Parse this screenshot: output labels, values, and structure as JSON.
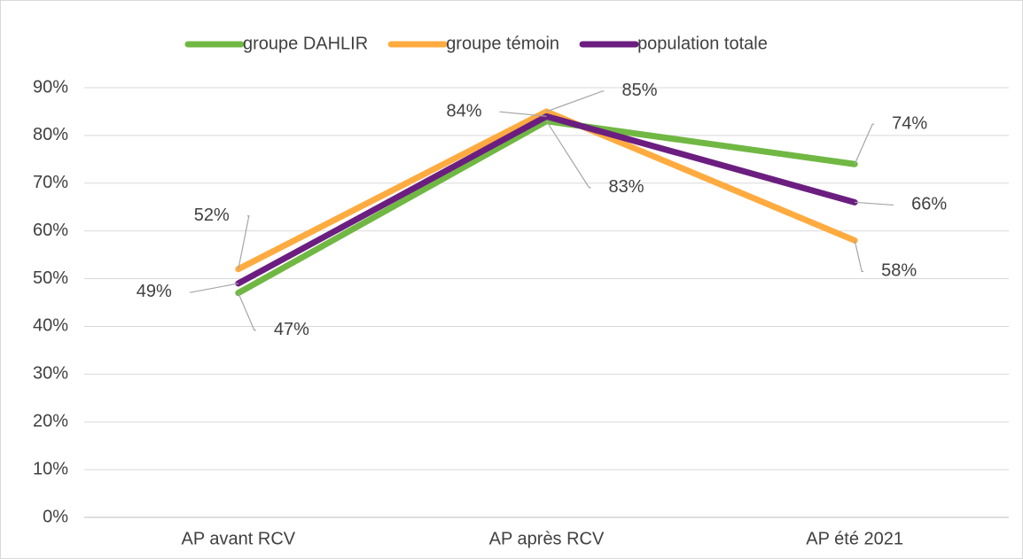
{
  "chart_data": {
    "type": "line",
    "categories": [
      "AP avant RCV",
      "AP après RCV",
      "AP été 2021"
    ],
    "series": [
      {
        "name": "groupe DAHLIR",
        "color": "#70b843",
        "values": [
          47,
          83,
          74
        ],
        "value_labels": [
          "47%",
          "83%",
          "74%"
        ]
      },
      {
        "name": "groupe témoin",
        "color": "#ffab40",
        "values": [
          52,
          85,
          58
        ],
        "value_labels": [
          "52%",
          "85%",
          "58%"
        ]
      },
      {
        "name": "population totale",
        "color": "#6b1e80",
        "values": [
          49,
          84,
          66
        ],
        "value_labels": [
          "49%",
          "84%",
          "66%"
        ]
      }
    ],
    "ylim": [
      0,
      90
    ],
    "yticks": [
      {
        "value": 0,
        "label": "0%"
      },
      {
        "value": 10,
        "label": "10%"
      },
      {
        "value": 20,
        "label": "20%"
      },
      {
        "value": 30,
        "label": "30%"
      },
      {
        "value": 40,
        "label": "40%"
      },
      {
        "value": 50,
        "label": "50%"
      },
      {
        "value": 60,
        "label": "60%"
      },
      {
        "value": 70,
        "label": "70%"
      },
      {
        "value": 80,
        "label": "80%"
      },
      {
        "value": 90,
        "label": "90%"
      }
    ],
    "grid": true,
    "legend": "top"
  }
}
